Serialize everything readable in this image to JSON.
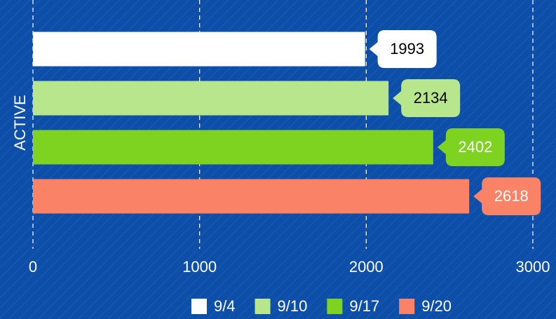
{
  "chart_data": {
    "type": "bar",
    "orientation": "horizontal",
    "y_label": "ACTIVE",
    "categories": [
      "ACTIVE"
    ],
    "series": [
      {
        "name": "9/4",
        "color": "#ffffff",
        "values": [
          1993
        ]
      },
      {
        "name": "9/10",
        "color": "#b8e68c",
        "values": [
          2134
        ]
      },
      {
        "name": "9/17",
        "color": "#7ed321",
        "values": [
          2402
        ]
      },
      {
        "name": "9/20",
        "color": "#fa8266",
        "values": [
          2618
        ]
      }
    ],
    "xlim": [
      0,
      3000
    ],
    "xticks": [
      0,
      1000,
      2000,
      3000
    ],
    "grid": true,
    "legend": "bottom"
  }
}
